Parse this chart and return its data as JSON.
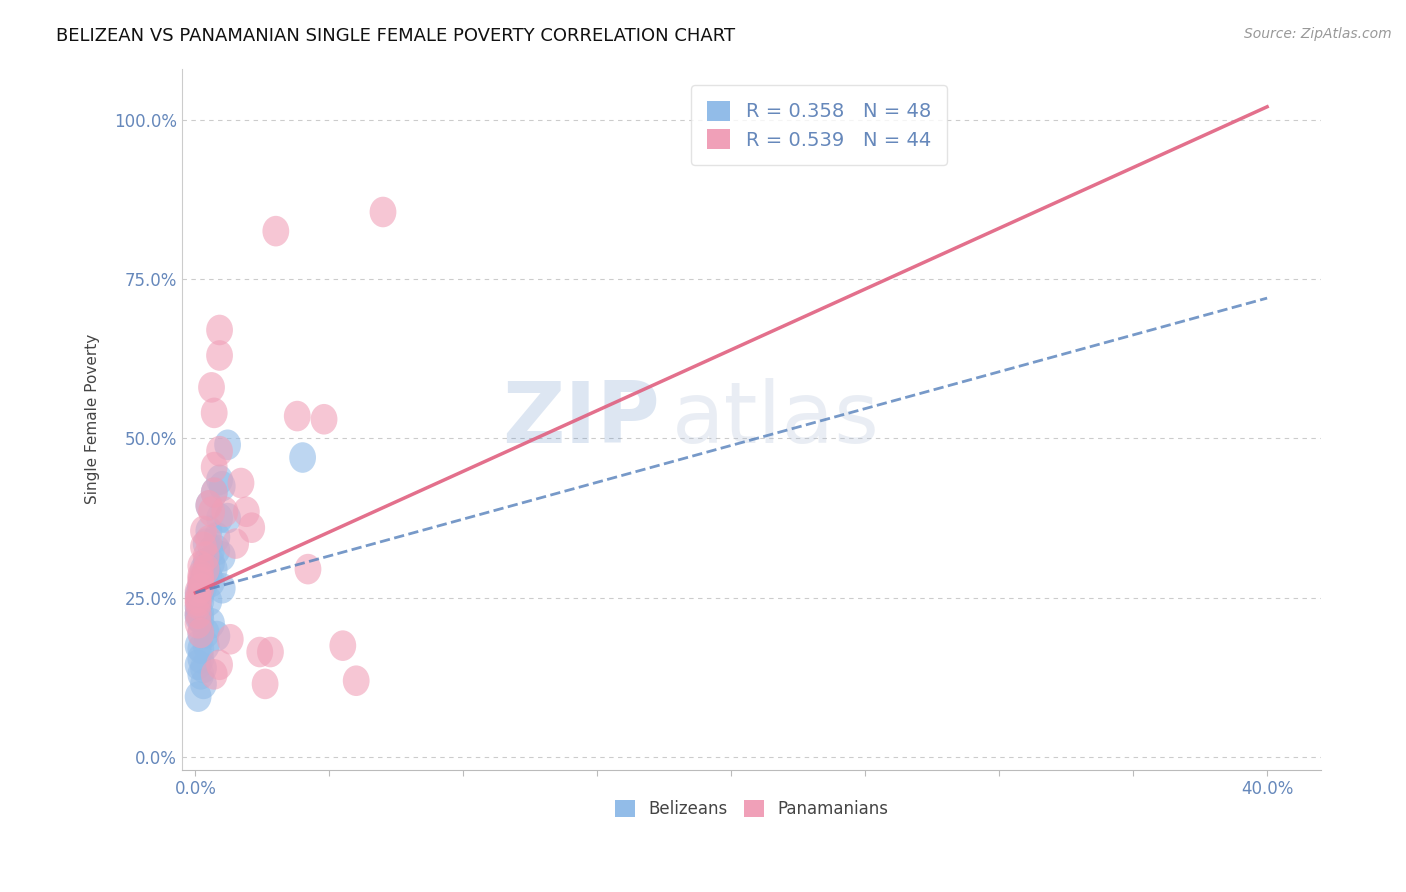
{
  "title": "BELIZEAN VS PANAMANIAN SINGLE FEMALE POVERTY CORRELATION CHART",
  "source": "Source: ZipAtlas.com",
  "ylabel": "Single Female Poverty",
  "xlim": [
    -0.005,
    0.42
  ],
  "ylim": [
    -0.02,
    1.08
  ],
  "xtick_positions": [
    0.0,
    0.05,
    0.1,
    0.15,
    0.2,
    0.25,
    0.3,
    0.35,
    0.4
  ],
  "xtick_labels_show": [
    "0.0%",
    "",
    "",
    "",
    "",
    "",
    "",
    "",
    "40.0%"
  ],
  "yticks": [
    0.0,
    0.25,
    0.5,
    0.75,
    1.0
  ],
  "ytick_labels": [
    "0.0%",
    "25.0%",
    "50.0%",
    "75.0%",
    "100.0%"
  ],
  "belizean_color": "#92BCE8",
  "panamanian_color": "#F0A0B8",
  "belizean_line_color": "#5580BB",
  "panamanian_line_color": "#E06080",
  "R_belizean": 0.358,
  "N_belizean": 48,
  "R_panamanian": 0.539,
  "N_panamanian": 44,
  "legend_labels": [
    "Belizeans",
    "Panamanians"
  ],
  "watermark_zip": "ZIP",
  "watermark_atlas": "atlas",
  "watermark_color": "#D0DFF5",
  "tick_color": "#6688BB",
  "belizean_x": [
    0.005,
    0.008,
    0.003,
    0.006,
    0.002,
    0.001,
    0.003,
    0.007,
    0.004,
    0.009,
    0.002,
    0.005,
    0.004,
    0.007,
    0.01,
    0.012,
    0.009,
    0.006,
    0.005,
    0.002,
    0.001,
    0.001,
    0.001,
    0.002,
    0.004,
    0.003,
    0.006,
    0.008,
    0.002,
    0.001,
    0.002,
    0.004,
    0.002,
    0.001,
    0.002,
    0.002,
    0.01,
    0.006,
    0.003,
    0.003,
    0.002,
    0.005,
    0.004,
    0.008,
    0.012,
    0.001,
    0.01,
    0.04
  ],
  "belizean_y": [
    0.285,
    0.345,
    0.295,
    0.325,
    0.27,
    0.255,
    0.28,
    0.295,
    0.305,
    0.375,
    0.265,
    0.355,
    0.285,
    0.415,
    0.425,
    0.49,
    0.435,
    0.305,
    0.395,
    0.245,
    0.22,
    0.235,
    0.225,
    0.255,
    0.335,
    0.265,
    0.21,
    0.19,
    0.17,
    0.145,
    0.155,
    0.175,
    0.225,
    0.175,
    0.195,
    0.215,
    0.315,
    0.275,
    0.14,
    0.115,
    0.13,
    0.245,
    0.195,
    0.325,
    0.375,
    0.095,
    0.265,
    0.47
  ],
  "panamanian_x": [
    0.001,
    0.002,
    0.001,
    0.001,
    0.001,
    0.002,
    0.003,
    0.002,
    0.001,
    0.002,
    0.003,
    0.004,
    0.005,
    0.007,
    0.006,
    0.009,
    0.005,
    0.007,
    0.004,
    0.002,
    0.001,
    0.002,
    0.006,
    0.009,
    0.007,
    0.009,
    0.011,
    0.013,
    0.009,
    0.007,
    0.015,
    0.017,
    0.019,
    0.021,
    0.03,
    0.038,
    0.024,
    0.026,
    0.028,
    0.042,
    0.048,
    0.055,
    0.06,
    0.07
  ],
  "panamanian_y": [
    0.26,
    0.285,
    0.24,
    0.25,
    0.245,
    0.3,
    0.33,
    0.28,
    0.225,
    0.275,
    0.355,
    0.315,
    0.395,
    0.455,
    0.385,
    0.48,
    0.34,
    0.415,
    0.295,
    0.265,
    0.21,
    0.195,
    0.58,
    0.67,
    0.54,
    0.63,
    0.385,
    0.185,
    0.145,
    0.13,
    0.335,
    0.43,
    0.385,
    0.36,
    0.825,
    0.535,
    0.165,
    0.115,
    0.165,
    0.295,
    0.53,
    0.175,
    0.12,
    0.855
  ],
  "bel_trend_x0": 0.0,
  "bel_trend_y0": 0.258,
  "bel_trend_x1": 0.4,
  "bel_trend_y1": 0.72,
  "pan_trend_x0": 0.0,
  "pan_trend_y0": 0.258,
  "pan_trend_x1": 0.4,
  "pan_trend_y1": 1.02
}
